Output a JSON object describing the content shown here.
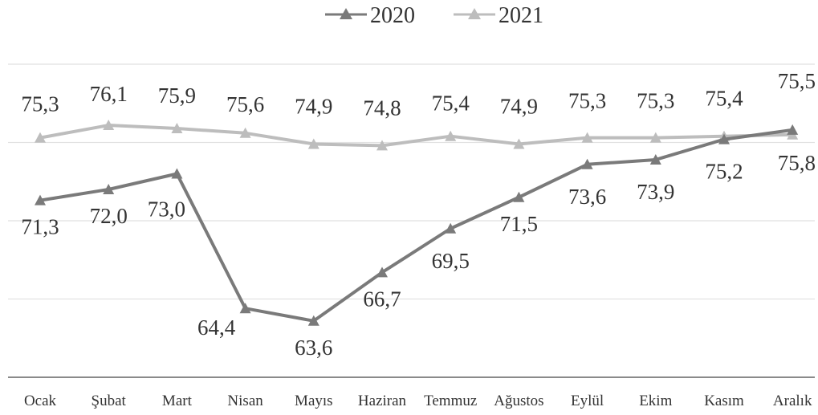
{
  "chart_data": {
    "type": "line",
    "categories": [
      "Ocak",
      "Şubat",
      "Mart",
      "Nisan",
      "Mayıs",
      "Haziran",
      "Temmuz",
      "Ağustos",
      "Eylül",
      "Ekim",
      "Kasım",
      "Aralık"
    ],
    "series": [
      {
        "name": "2020",
        "color": "#7a7a7a",
        "values": [
          71.3,
          72.0,
          73.0,
          64.4,
          63.6,
          66.7,
          69.5,
          71.5,
          73.6,
          73.9,
          75.2,
          75.8
        ],
        "labels": [
          "71,3",
          "72,0",
          "73,0",
          "64,4",
          "63,6",
          "66,7",
          "69,5",
          "71,5",
          "73,6",
          "73,9",
          "75,2",
          "75,8"
        ]
      },
      {
        "name": "2021",
        "color": "#bdbdbd",
        "values": [
          75.3,
          76.1,
          75.9,
          75.6,
          74.9,
          74.8,
          75.4,
          74.9,
          75.3,
          75.3,
          75.4,
          75.5
        ],
        "labels": [
          "75,3",
          "76,1",
          "75,9",
          "75,6",
          "74,9",
          "74,8",
          "75,4",
          "74,9",
          "75,3",
          "75,3",
          "75,4",
          "75,5"
        ]
      }
    ],
    "ylim": [
      60,
      80
    ],
    "grid": true,
    "legend": "top-center"
  }
}
